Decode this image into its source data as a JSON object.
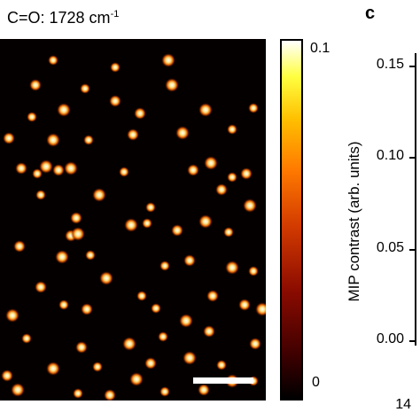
{
  "header": {
    "title_main": "C=O: 1728 cm",
    "title_sup": "-1",
    "panel_letter": "c"
  },
  "colorbar": {
    "max_label": "0.1",
    "min_label": "0",
    "colors": [
      "#000000",
      "#8a0b00",
      "#ff7a00",
      "#ffff40",
      "#ffffff"
    ]
  },
  "chart_data": {
    "type": "scatter",
    "title": "",
    "xlabel": "",
    "ylabel": "MIP contrast (arb. units)",
    "yticks": [
      "0.15",
      "0.10",
      "0.05",
      "0.00"
    ],
    "ylim": [
      -0.01,
      0.165
    ],
    "x_partial_tick": "14",
    "series": []
  }
}
